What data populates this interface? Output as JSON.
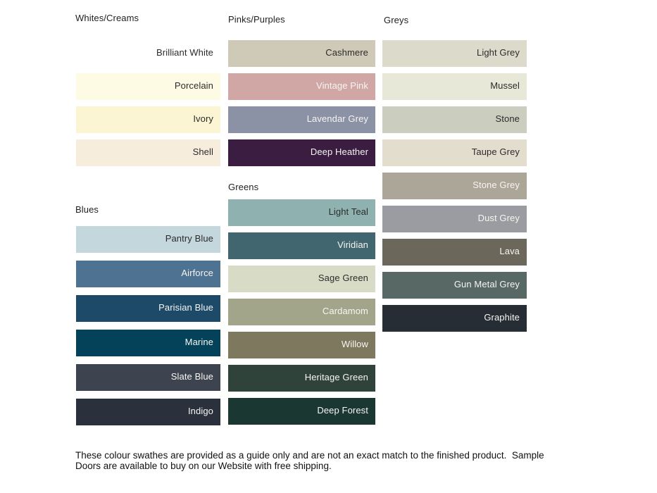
{
  "page": {
    "background": "#ffffff"
  },
  "text_colors": {
    "dark": "#2b2b2b",
    "light": "#f6f5f2"
  },
  "groups": [
    {
      "title": "Whites/Creams",
      "swatches": [
        {
          "name": "Brilliant White",
          "color": "#ffffff",
          "label_style": "dark"
        },
        {
          "name": "Porcelain",
          "color": "#fefbe5",
          "label_style": "dark"
        },
        {
          "name": "Ivory",
          "color": "#fbf5d3",
          "label_style": "dark"
        },
        {
          "name": "Shell",
          "color": "#f6eddd",
          "label_style": "dark"
        }
      ]
    },
    {
      "title": "Blues",
      "swatches": [
        {
          "name": "Pantry Blue",
          "color": "#c3d7dd",
          "label_style": "dark"
        },
        {
          "name": "Airforce",
          "color": "#4e7291",
          "label_style": "light"
        },
        {
          "name": "Parisian Blue",
          "color": "#1d4a68",
          "label_style": "light"
        },
        {
          "name": "Marine",
          "color": "#04425a",
          "label_style": "light"
        },
        {
          "name": "Slate Blue",
          "color": "#3d4450",
          "label_style": "light"
        },
        {
          "name": "Indigo",
          "color": "#2a313d",
          "label_style": "light"
        }
      ]
    },
    {
      "title": "Pinks/Purples",
      "swatches": [
        {
          "name": "Cashmere",
          "color": "#cfc9b7",
          "label_style": "dark"
        },
        {
          "name": "Vintage Pink",
          "color": "#d0a7a4",
          "label_style": "light"
        },
        {
          "name": "Lavendar Grey",
          "color": "#8c92a5",
          "label_style": "light"
        },
        {
          "name": "Deep Heather",
          "color": "#3a1d40",
          "label_style": "light"
        }
      ]
    },
    {
      "title": "Greens",
      "swatches": [
        {
          "name": "Light Teal",
          "color": "#8fb2b1",
          "label_style": "dark"
        },
        {
          "name": "Viridian",
          "color": "#42666f",
          "label_style": "light"
        },
        {
          "name": "Sage Green",
          "color": "#d8dcc6",
          "label_style": "dark"
        },
        {
          "name": "Cardamom",
          "color": "#a2a58a",
          "label_style": "light"
        },
        {
          "name": "Willow",
          "color": "#7e785e",
          "label_style": "light"
        },
        {
          "name": "Heritage Green",
          "color": "#30433a",
          "label_style": "light"
        },
        {
          "name": "Deep Forest",
          "color": "#1a3731",
          "label_style": "light"
        }
      ]
    },
    {
      "title": "Greys",
      "swatches": [
        {
          "name": "Light Grey",
          "color": "#dcdacb",
          "label_style": "dark"
        },
        {
          "name": "Mussel",
          "color": "#e7e8d8",
          "label_style": "dark"
        },
        {
          "name": "Stone",
          "color": "#cbcebf",
          "label_style": "dark"
        },
        {
          "name": "Taupe Grey",
          "color": "#e3ddce",
          "label_style": "dark"
        },
        {
          "name": "Stone Grey",
          "color": "#aca699",
          "label_style": "light"
        },
        {
          "name": "Dust Grey",
          "color": "#9b9ca1",
          "label_style": "light"
        },
        {
          "name": "Lava",
          "color": "#6b675a",
          "label_style": "light"
        },
        {
          "name": "Gun Metal Grey",
          "color": "#586865",
          "label_style": "light"
        },
        {
          "name": "Graphite",
          "color": "#262d35",
          "label_style": "light"
        }
      ]
    }
  ],
  "footnote": {
    "lines": [
      "These colour swathes are provided as a guide only and are not an exact match to the finished product.  Sample",
      "Doors are available to buy on our Website with free shipping."
    ]
  }
}
